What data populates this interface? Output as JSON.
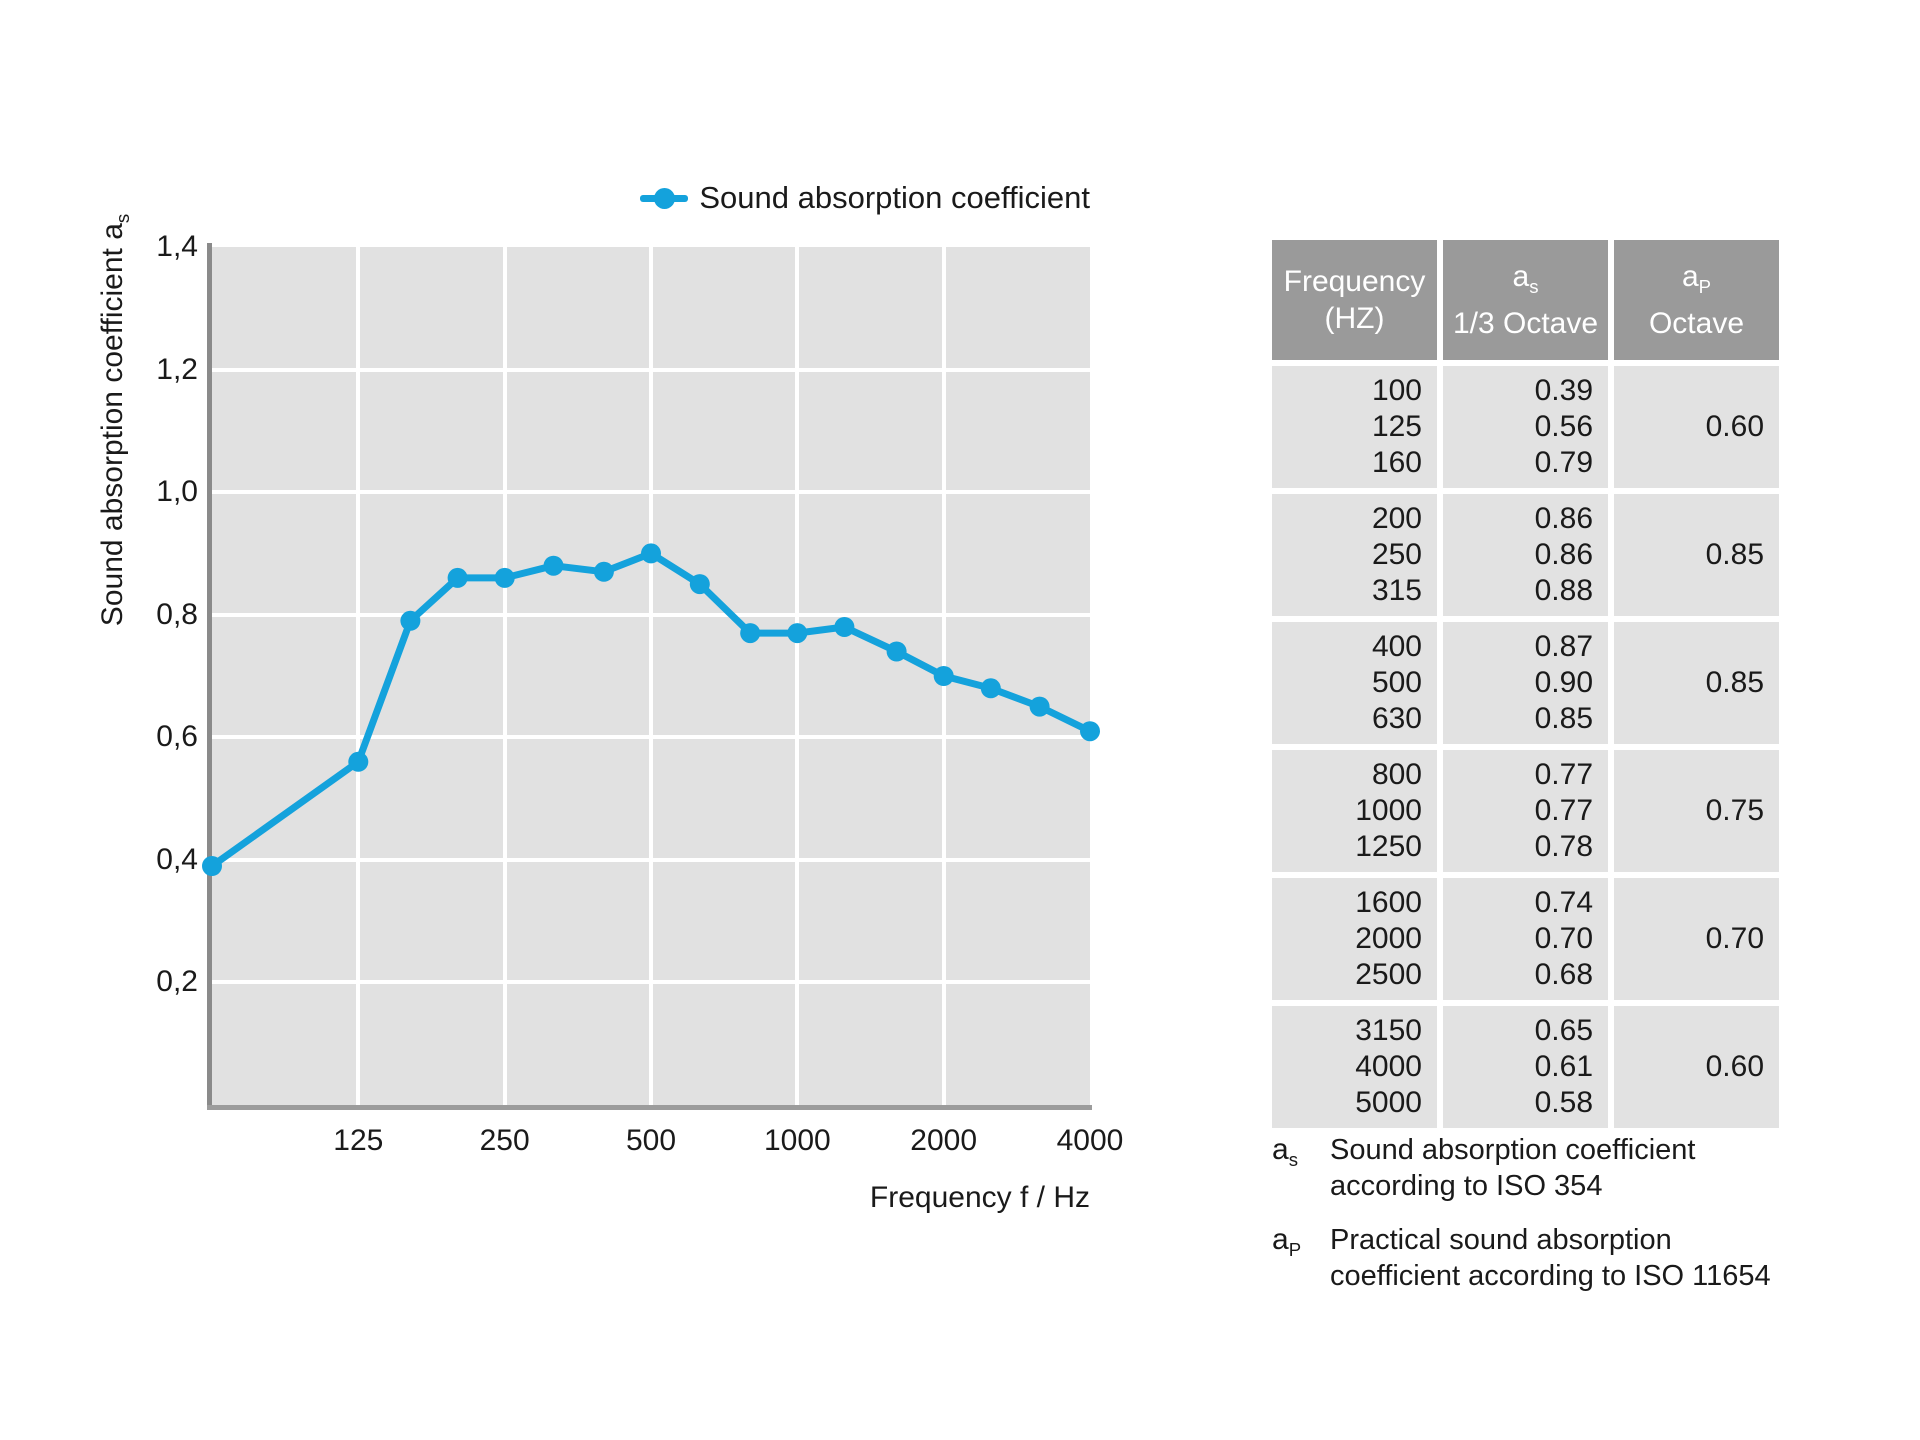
{
  "colors": {
    "line_blue": "#14A2DC",
    "plot_background": "#E1E1E1",
    "grid_white": "#FFFFFF",
    "axis_gray": "#8F8F8F",
    "table_header_gray": "#9A9A9A",
    "table_cell_gray": "#E2E2E2",
    "text": "#1A1A1A"
  },
  "legend": {
    "label": "Sound absorption coefficient"
  },
  "chart": {
    "y_axis_title_base": "Sound absorption coefficient a",
    "y_axis_title_sub": "s",
    "x_axis_title": "Frequency f / Hz",
    "y_ticks": [
      {
        "label": "1,4",
        "value": 1.4
      },
      {
        "label": "1,2",
        "value": 1.2
      },
      {
        "label": "1,0",
        "value": 1.0
      },
      {
        "label": "0,8",
        "value": 0.8
      },
      {
        "label": "0,6",
        "value": 0.6
      },
      {
        "label": "0,4",
        "value": 0.4
      },
      {
        "label": "0,2",
        "value": 0.2
      }
    ],
    "x_ticks": [
      {
        "label": "125",
        "freq": 125
      },
      {
        "label": "250",
        "freq": 250
      },
      {
        "label": "500",
        "freq": 500
      },
      {
        "label": "1000",
        "freq": 1000
      },
      {
        "label": "2000",
        "freq": 2000
      },
      {
        "label": "4000",
        "freq": 4000
      }
    ]
  },
  "chart_data": {
    "type": "line",
    "title": "",
    "xlabel": "Frequency f / Hz",
    "ylabel": "Sound absorption coefficient a_s",
    "ylim": [
      0,
      1.4
    ],
    "grid": true,
    "legend_position": "top-right",
    "x_scale": "logarithmic (octaves); left edge one octave below 125 Hz, first point drawn on left axis",
    "series": [
      {
        "name": "Sound absorption coefficient",
        "x": [
          100,
          125,
          160,
          200,
          250,
          315,
          400,
          500,
          630,
          800,
          1000,
          1250,
          1600,
          2000,
          2500,
          3150,
          4000
        ],
        "values": [
          0.39,
          0.56,
          0.79,
          0.86,
          0.86,
          0.88,
          0.87,
          0.9,
          0.85,
          0.77,
          0.77,
          0.78,
          0.74,
          0.7,
          0.68,
          0.65,
          0.61
        ]
      }
    ]
  },
  "table": {
    "headers": [
      {
        "line1": "Frequency",
        "line2": "(HZ)"
      },
      {
        "base": "a",
        "sub": "s",
        "line2": "1/3 Octave"
      },
      {
        "base": "a",
        "sub": "P",
        "line2": "Octave"
      }
    ],
    "groups": [
      {
        "freqs": [
          "100",
          "125",
          "160"
        ],
        "third_octave": [
          "0.39",
          "0.56",
          "0.79"
        ],
        "octave": "0.60"
      },
      {
        "freqs": [
          "200",
          "250",
          "315"
        ],
        "third_octave": [
          "0.86",
          "0.86",
          "0.88"
        ],
        "octave": "0.85"
      },
      {
        "freqs": [
          "400",
          "500",
          "630"
        ],
        "third_octave": [
          "0.87",
          "0.90",
          "0.85"
        ],
        "octave": "0.85"
      },
      {
        "freqs": [
          "800",
          "1000",
          "1250"
        ],
        "third_octave": [
          "0.77",
          "0.77",
          "0.78"
        ],
        "octave": "0.75"
      },
      {
        "freqs": [
          "1600",
          "2000",
          "2500"
        ],
        "third_octave": [
          "0.74",
          "0.70",
          "0.68"
        ],
        "octave": "0.70"
      },
      {
        "freqs": [
          "3150",
          "4000",
          "5000"
        ],
        "third_octave": [
          "0.65",
          "0.61",
          "0.58"
        ],
        "octave": "0.60"
      }
    ]
  },
  "footnotes": [
    {
      "base": "a",
      "sub": "s",
      "lines": [
        "Sound absorption coefficient",
        "according to ISO 354"
      ]
    },
    {
      "base": "a",
      "sub": "P",
      "lines": [
        "Practical sound absorption",
        "coefficient according to ISO 11654"
      ]
    }
  ]
}
